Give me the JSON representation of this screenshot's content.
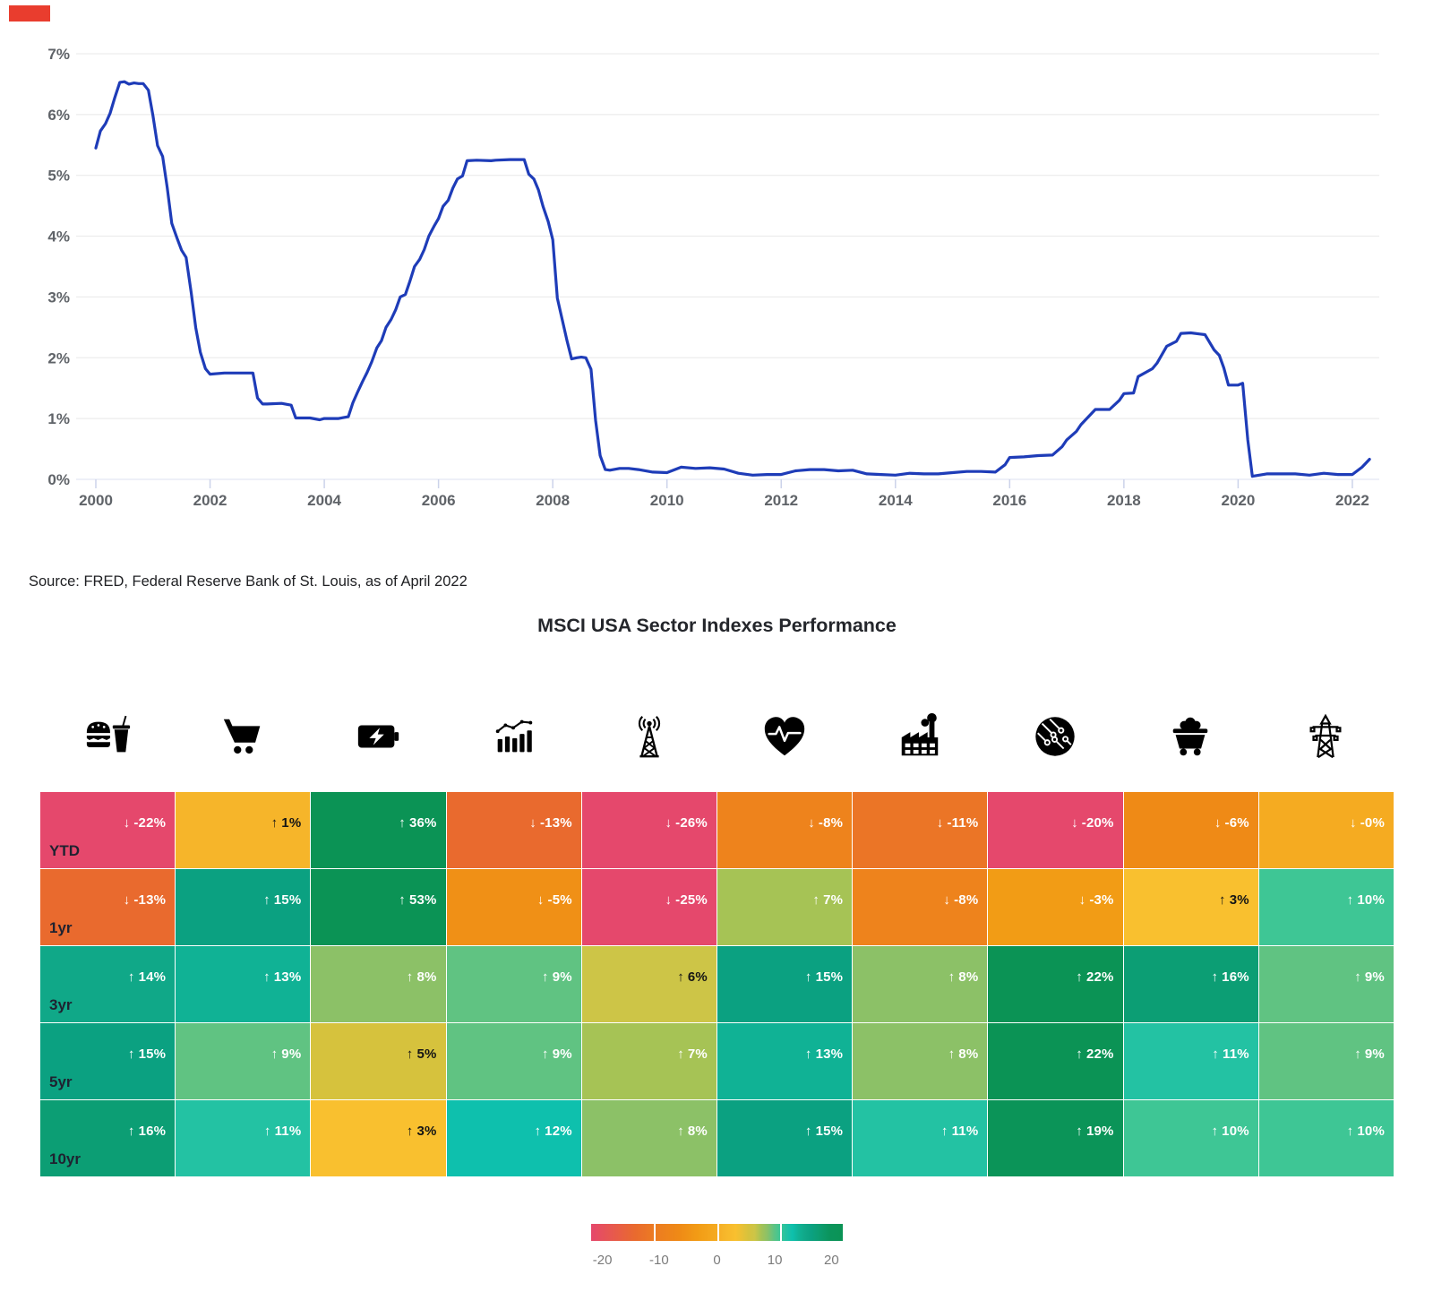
{
  "source_note": "Source: FRED, Federal Reserve Bank of St. Louis, as of April 2022",
  "chart_data": [
    {
      "type": "line",
      "title": "",
      "xlim": [
        2000,
        2022.4
      ],
      "ylim": [
        0,
        7
      ],
      "grid": true,
      "legend": "none",
      "line_color": "#1e3cb8",
      "x_tick_labels": [
        "2000",
        "2002",
        "2004",
        "2006",
        "2008",
        "2010",
        "2012",
        "2014",
        "2016",
        "2018",
        "2020",
        "2022"
      ],
      "y_tick_labels": [
        "0%",
        "1%",
        "2%",
        "3%",
        "4%",
        "5%",
        "6%",
        "7%"
      ],
      "points": [
        [
          2000.0,
          5.45
        ],
        [
          2000.08,
          5.73
        ],
        [
          2000.17,
          5.85
        ],
        [
          2000.25,
          6.02
        ],
        [
          2000.33,
          6.27
        ],
        [
          2000.42,
          6.53
        ],
        [
          2000.5,
          6.54
        ],
        [
          2000.58,
          6.5
        ],
        [
          2000.67,
          6.52
        ],
        [
          2000.75,
          6.51
        ],
        [
          2000.83,
          6.51
        ],
        [
          2000.92,
          6.4
        ],
        [
          2001.0,
          5.98
        ],
        [
          2001.08,
          5.49
        ],
        [
          2001.17,
          5.31
        ],
        [
          2001.25,
          4.8
        ],
        [
          2001.33,
          4.21
        ],
        [
          2001.42,
          3.97
        ],
        [
          2001.5,
          3.77
        ],
        [
          2001.58,
          3.65
        ],
        [
          2001.67,
          3.07
        ],
        [
          2001.75,
          2.49
        ],
        [
          2001.83,
          2.09
        ],
        [
          2001.92,
          1.82
        ],
        [
          2002.0,
          1.73
        ],
        [
          2002.25,
          1.75
        ],
        [
          2002.5,
          1.75
        ],
        [
          2002.75,
          1.75
        ],
        [
          2002.83,
          1.34
        ],
        [
          2002.92,
          1.24
        ],
        [
          2003.0,
          1.24
        ],
        [
          2003.25,
          1.25
        ],
        [
          2003.42,
          1.22
        ],
        [
          2003.5,
          1.01
        ],
        [
          2003.75,
          1.01
        ],
        [
          2003.92,
          0.98
        ],
        [
          2004.0,
          1.0
        ],
        [
          2004.25,
          1.0
        ],
        [
          2004.42,
          1.03
        ],
        [
          2004.5,
          1.26
        ],
        [
          2004.58,
          1.43
        ],
        [
          2004.67,
          1.61
        ],
        [
          2004.75,
          1.76
        ],
        [
          2004.83,
          1.93
        ],
        [
          2004.92,
          2.16
        ],
        [
          2005.0,
          2.28
        ],
        [
          2005.08,
          2.5
        ],
        [
          2005.17,
          2.63
        ],
        [
          2005.25,
          2.79
        ],
        [
          2005.33,
          3.0
        ],
        [
          2005.42,
          3.04
        ],
        [
          2005.5,
          3.26
        ],
        [
          2005.58,
          3.5
        ],
        [
          2005.67,
          3.62
        ],
        [
          2005.75,
          3.78
        ],
        [
          2005.83,
          4.0
        ],
        [
          2005.92,
          4.16
        ],
        [
          2006.0,
          4.29
        ],
        [
          2006.08,
          4.49
        ],
        [
          2006.17,
          4.59
        ],
        [
          2006.25,
          4.79
        ],
        [
          2006.33,
          4.94
        ],
        [
          2006.42,
          4.99
        ],
        [
          2006.5,
          5.24
        ],
        [
          2006.67,
          5.25
        ],
        [
          2006.92,
          5.24
        ],
        [
          2007.0,
          5.25
        ],
        [
          2007.25,
          5.26
        ],
        [
          2007.5,
          5.26
        ],
        [
          2007.58,
          5.02
        ],
        [
          2007.67,
          4.94
        ],
        [
          2007.75,
          4.76
        ],
        [
          2007.83,
          4.49
        ],
        [
          2007.92,
          4.24
        ],
        [
          2008.0,
          3.94
        ],
        [
          2008.08,
          2.98
        ],
        [
          2008.17,
          2.61
        ],
        [
          2008.25,
          2.28
        ],
        [
          2008.33,
          1.98
        ],
        [
          2008.42,
          2.0
        ],
        [
          2008.5,
          2.01
        ],
        [
          2008.58,
          2.0
        ],
        [
          2008.67,
          1.81
        ],
        [
          2008.75,
          0.97
        ],
        [
          2008.83,
          0.39
        ],
        [
          2008.92,
          0.16
        ],
        [
          2009.0,
          0.15
        ],
        [
          2009.17,
          0.18
        ],
        [
          2009.33,
          0.18
        ],
        [
          2009.5,
          0.16
        ],
        [
          2009.75,
          0.12
        ],
        [
          2010.0,
          0.11
        ],
        [
          2010.25,
          0.2
        ],
        [
          2010.5,
          0.18
        ],
        [
          2010.75,
          0.19
        ],
        [
          2011.0,
          0.17
        ],
        [
          2011.25,
          0.1
        ],
        [
          2011.5,
          0.07
        ],
        [
          2011.75,
          0.08
        ],
        [
          2012.0,
          0.08
        ],
        [
          2012.25,
          0.14
        ],
        [
          2012.5,
          0.16
        ],
        [
          2012.75,
          0.16
        ],
        [
          2013.0,
          0.14
        ],
        [
          2013.25,
          0.15
        ],
        [
          2013.5,
          0.09
        ],
        [
          2013.75,
          0.08
        ],
        [
          2014.0,
          0.07
        ],
        [
          2014.25,
          0.1
        ],
        [
          2014.5,
          0.09
        ],
        [
          2014.75,
          0.09
        ],
        [
          2015.0,
          0.11
        ],
        [
          2015.25,
          0.13
        ],
        [
          2015.5,
          0.13
        ],
        [
          2015.75,
          0.12
        ],
        [
          2015.92,
          0.24
        ],
        [
          2016.0,
          0.36
        ],
        [
          2016.25,
          0.37
        ],
        [
          2016.5,
          0.39
        ],
        [
          2016.75,
          0.4
        ],
        [
          2016.92,
          0.54
        ],
        [
          2017.0,
          0.65
        ],
        [
          2017.17,
          0.79
        ],
        [
          2017.25,
          0.9
        ],
        [
          2017.5,
          1.15
        ],
        [
          2017.75,
          1.15
        ],
        [
          2017.92,
          1.3
        ],
        [
          2018.0,
          1.41
        ],
        [
          2018.17,
          1.42
        ],
        [
          2018.25,
          1.69
        ],
        [
          2018.5,
          1.82
        ],
        [
          2018.58,
          1.91
        ],
        [
          2018.75,
          2.19
        ],
        [
          2018.92,
          2.27
        ],
        [
          2019.0,
          2.4
        ],
        [
          2019.17,
          2.41
        ],
        [
          2019.33,
          2.39
        ],
        [
          2019.42,
          2.38
        ],
        [
          2019.58,
          2.13
        ],
        [
          2019.67,
          2.04
        ],
        [
          2019.75,
          1.83
        ],
        [
          2019.83,
          1.55
        ],
        [
          2020.0,
          1.55
        ],
        [
          2020.08,
          1.58
        ],
        [
          2020.17,
          0.65
        ],
        [
          2020.25,
          0.05
        ],
        [
          2020.5,
          0.09
        ],
        [
          2020.75,
          0.09
        ],
        [
          2021.0,
          0.09
        ],
        [
          2021.25,
          0.07
        ],
        [
          2021.5,
          0.1
        ],
        [
          2021.75,
          0.08
        ],
        [
          2022.0,
          0.08
        ],
        [
          2022.17,
          0.2
        ],
        [
          2022.3,
          0.33
        ]
      ]
    },
    {
      "type": "heatmap",
      "title": "MSCI USA Sector Indexes Performance",
      "sector_icons": [
        "fast-food-icon",
        "shopping-cart-icon",
        "battery-energy-icon",
        "bar-chart-trend-icon",
        "radio-tower-icon",
        "heart-pulse-icon",
        "factory-icon",
        "circuit-board-icon",
        "mine-cart-icon",
        "power-pylon-icon"
      ],
      "row_labels": [
        "YTD",
        "1yr",
        "3yr",
        "5yr",
        "10yr"
      ],
      "rows": [
        {
          "label": "YTD",
          "values": [
            -22,
            1,
            36,
            -13,
            -26,
            -8,
            -11,
            -20,
            -6,
            0
          ],
          "display": [
            "-22%",
            "1%",
            "36%",
            "-13%",
            "-26%",
            "-8%",
            "-11%",
            "-20%",
            "-6%",
            "-0%"
          ]
        },
        {
          "label": "1yr",
          "values": [
            -13,
            15,
            53,
            -5,
            -25,
            7,
            -8,
            -3,
            3,
            10
          ],
          "display": [
            "-13%",
            "15%",
            "53%",
            "-5%",
            "-25%",
            "7%",
            "-8%",
            "-3%",
            "3%",
            "10%"
          ]
        },
        {
          "label": "3yr",
          "values": [
            14,
            13,
            8,
            9,
            6,
            15,
            8,
            22,
            16,
            9
          ],
          "display": [
            "14%",
            "13%",
            "8%",
            "9%",
            "6%",
            "15%",
            "8%",
            "22%",
            "16%",
            "9%"
          ]
        },
        {
          "label": "5yr",
          "values": [
            15,
            9,
            5,
            9,
            7,
            13,
            8,
            22,
            11,
            9
          ],
          "display": [
            "15%",
            "9%",
            "5%",
            "9%",
            "7%",
            "13%",
            "8%",
            "22%",
            "11%",
            "9%"
          ]
        },
        {
          "label": "10yr",
          "values": [
            16,
            11,
            3,
            12,
            8,
            15,
            11,
            19,
            10,
            10
          ],
          "display": [
            "16%",
            "11%",
            "3%",
            "12%",
            "8%",
            "15%",
            "11%",
            "19%",
            "10%",
            "10%"
          ]
        }
      ],
      "color_stops": [
        [
          -20,
          "#e5486c"
        ],
        [
          -13,
          "#e96a2e"
        ],
        [
          -10,
          "#ec7b22"
        ],
        [
          -6,
          "#ef8a16"
        ],
        [
          -3,
          "#f29c15"
        ],
        [
          0,
          "#f5ab21"
        ],
        [
          1,
          "#f6b52a"
        ],
        [
          3,
          "#f9c02f"
        ],
        [
          4,
          "#e8c136"
        ],
        [
          5,
          "#d6c23d"
        ],
        [
          6,
          "#cdc547"
        ],
        [
          7,
          "#a6c355"
        ],
        [
          8,
          "#8cc167"
        ],
        [
          9,
          "#60c382"
        ],
        [
          10,
          "#3ec695"
        ],
        [
          11,
          "#23c2a3"
        ],
        [
          12,
          "#0ec0ad"
        ],
        [
          13,
          "#10b295"
        ],
        [
          14,
          "#10a888"
        ],
        [
          15,
          "#0ba181"
        ],
        [
          16,
          "#0c9e74"
        ],
        [
          18,
          "#0b945b"
        ],
        [
          20,
          "#0b9355"
        ]
      ],
      "legend_ticks": [
        "-20",
        "-10",
        "0",
        "10",
        "20"
      ],
      "legend_range": [
        -20,
        20
      ]
    }
  ]
}
